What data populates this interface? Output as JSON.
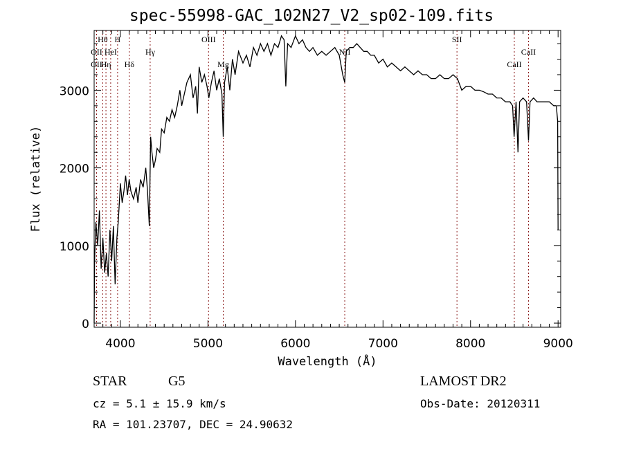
{
  "chart_data": {
    "type": "line",
    "title": "spec-55998-GAC_102N27_V2_sp02-109.fits",
    "xlabel": "Wavelength (Å)",
    "ylabel": "Flux (relative)",
    "xlim": [
      3700,
      9030
    ],
    "ylim": [
      -53,
      3770
    ],
    "x_ticks": [
      4000,
      5000,
      6000,
      7000,
      8000,
      9000
    ],
    "x_tick_labels": [
      "4000",
      "5000",
      "6000",
      "7000",
      "8000",
      "9000"
    ],
    "y_ticks": [
      0,
      1000,
      2000,
      3000
    ],
    "y_tick_labels": [
      "0",
      "1000",
      "2000",
      "3000"
    ],
    "grid": false,
    "lines": [
      {
        "label": "OII",
        "wave": 3727,
        "row": 1
      },
      {
        "label": "OII",
        "wave": 3727,
        "row": 2
      },
      {
        "label": "Hθ",
        "wave": 3798,
        "row": 0
      },
      {
        "label": "Hη",
        "wave": 3835,
        "row": 2
      },
      {
        "label": "HeI",
        "wave": 3889,
        "row": 1
      },
      {
        "label": "H",
        "wave": 3968,
        "row": 0
      },
      {
        "label": "Hδ",
        "wave": 4102,
        "row": 2
      },
      {
        "label": "Hγ",
        "wave": 4340,
        "row": 1
      },
      {
        "label": "OIII",
        "wave": 5007,
        "row": 0
      },
      {
        "label": "Mg",
        "wave": 5175,
        "row": 2
      },
      {
        "label": "NII",
        "wave": 6563,
        "row": 1
      },
      {
        "label": "SII",
        "wave": 7845,
        "row": 0
      },
      {
        "label": "CaII",
        "wave": 8500,
        "row": 2
      },
      {
        "label": "CaII",
        "wave": 8662,
        "row": 1
      }
    ],
    "series": [
      {
        "name": "flux",
        "x": [
          3700,
          3705,
          3720,
          3740,
          3760,
          3780,
          3800,
          3820,
          3840,
          3860,
          3880,
          3900,
          3920,
          3940,
          3960,
          3975,
          3990,
          4000,
          4020,
          4040,
          4060,
          4080,
          4100,
          4120,
          4150,
          4180,
          4200,
          4230,
          4260,
          4290,
          4310,
          4330,
          4345,
          4360,
          4380,
          4400,
          4420,
          4450,
          4470,
          4500,
          4530,
          4560,
          4590,
          4620,
          4650,
          4680,
          4700,
          4720,
          4760,
          4800,
          4830,
          4860,
          4880,
          4900,
          4930,
          4960,
          4990,
          5010,
          5040,
          5070,
          5100,
          5130,
          5160,
          5175,
          5190,
          5220,
          5250,
          5280,
          5310,
          5350,
          5400,
          5440,
          5480,
          5520,
          5560,
          5600,
          5640,
          5680,
          5720,
          5760,
          5800,
          5840,
          5870,
          5890,
          5910,
          5950,
          6000,
          6040,
          6080,
          6120,
          6160,
          6200,
          6250,
          6300,
          6350,
          6400,
          6450,
          6500,
          6540,
          6563,
          6580,
          6620,
          6660,
          6700,
          6740,
          6780,
          6820,
          6860,
          6900,
          6950,
          7000,
          7050,
          7100,
          7150,
          7200,
          7250,
          7300,
          7350,
          7400,
          7450,
          7500,
          7550,
          7600,
          7650,
          7700,
          7750,
          7800,
          7850,
          7900,
          7950,
          8000,
          8050,
          8100,
          8150,
          8200,
          8250,
          8300,
          8350,
          8400,
          8450,
          8480,
          8498,
          8520,
          8542,
          8560,
          8600,
          8640,
          8662,
          8680,
          8720,
          8760,
          8800,
          8850,
          8900,
          8950,
          8980,
          8995,
          9000
        ],
        "y": [
          0,
          800,
          1300,
          1000,
          1450,
          700,
          1100,
          650,
          900,
          600,
          1200,
          800,
          1250,
          500,
          1100,
          1300,
          1600,
          1800,
          1550,
          1700,
          1900,
          1650,
          1850,
          1700,
          1600,
          1750,
          1550,
          1850,
          1750,
          2000,
          1700,
          1250,
          2400,
          2200,
          2000,
          2100,
          2250,
          2200,
          2500,
          2450,
          2650,
          2600,
          2750,
          2650,
          2800,
          3000,
          2800,
          2900,
          3100,
          3200,
          2900,
          3050,
          2700,
          3300,
          3100,
          3200,
          3050,
          2900,
          3100,
          3250,
          3000,
          3150,
          2950,
          2400,
          3100,
          3300,
          3000,
          3400,
          3200,
          3500,
          3350,
          3450,
          3300,
          3550,
          3450,
          3600,
          3500,
          3600,
          3450,
          3600,
          3550,
          3700,
          3650,
          3050,
          3600,
          3550,
          3700,
          3600,
          3650,
          3550,
          3500,
          3550,
          3450,
          3500,
          3450,
          3500,
          3550,
          3450,
          3200,
          3100,
          3500,
          3550,
          3550,
          3600,
          3550,
          3500,
          3500,
          3450,
          3450,
          3350,
          3400,
          3300,
          3350,
          3300,
          3250,
          3300,
          3250,
          3200,
          3250,
          3200,
          3200,
          3150,
          3150,
          3200,
          3150,
          3150,
          3200,
          3150,
          3000,
          3050,
          3050,
          3000,
          3000,
          2980,
          2950,
          2950,
          2900,
          2900,
          2850,
          2850,
          2800,
          2400,
          2850,
          2200,
          2850,
          2900,
          2850,
          2350,
          2850,
          2900,
          2850,
          2850,
          2850,
          2850,
          2800,
          2800,
          2600,
          1200
        ]
      }
    ]
  },
  "footer": {
    "object_class": "STAR",
    "subclass": "G5",
    "cz": "cz = 5.1 ± 15.9 km/s",
    "coords": "RA = 101.23707, DEC =  24.90632",
    "survey": "LAMOST DR2",
    "obs_date": "Obs-Date: 20120311"
  },
  "colors": {
    "line_marker": "#8b1a1a",
    "spectrum": "#000000"
  }
}
